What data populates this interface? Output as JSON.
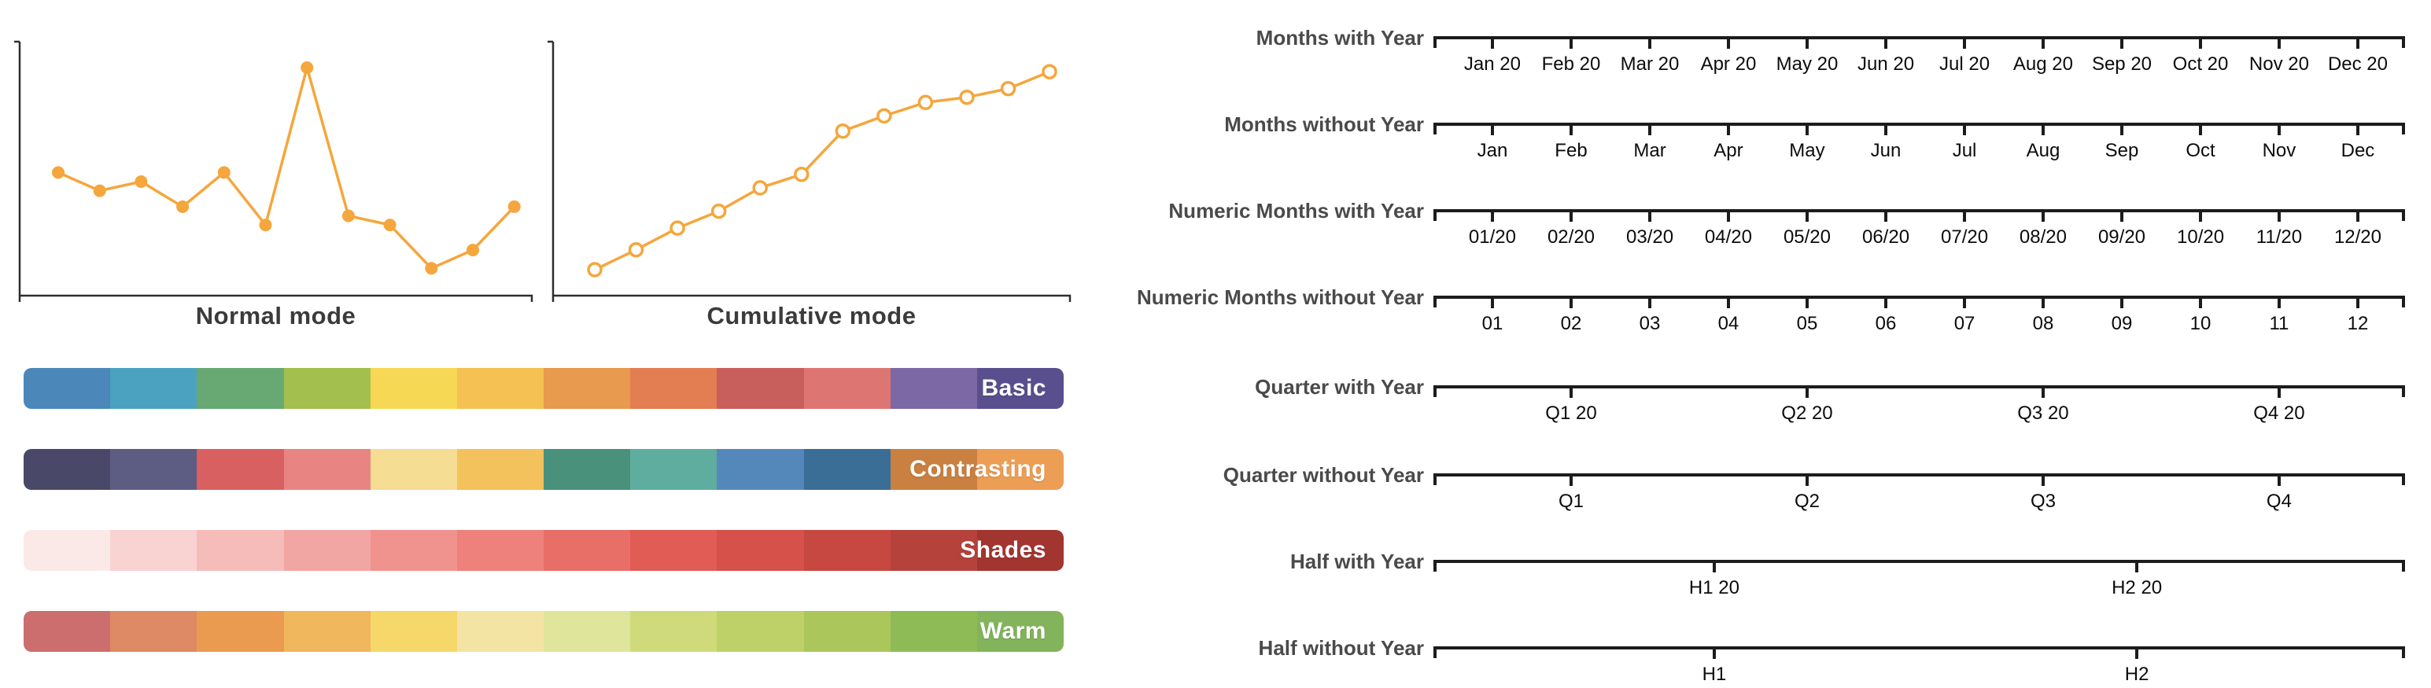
{
  "charts": {
    "normal": {
      "title": "Normal mode"
    },
    "cumulative": {
      "title": "Cumulative mode"
    }
  },
  "chart_data": [
    {
      "type": "line",
      "title": "Normal mode",
      "x": [
        1,
        2,
        3,
        4,
        5,
        6,
        7,
        8,
        9,
        10,
        11,
        12
      ],
      "values": [
        54,
        46,
        50,
        39,
        54,
        31,
        100,
        35,
        31,
        12,
        20,
        39
      ],
      "point_style": "filled",
      "line_color": "#F5A63C",
      "xlabel": "",
      "ylabel": "",
      "axis_ticks": "none",
      "legend": "none"
    },
    {
      "type": "line",
      "title": "Cumulative mode",
      "x": [
        1,
        2,
        3,
        4,
        5,
        6,
        7,
        8,
        9,
        10,
        11,
        12
      ],
      "values": [
        54,
        100,
        150,
        189,
        243,
        274,
        374,
        409,
        440,
        452,
        472,
        511
      ],
      "point_style": "open",
      "line_color": "#F5A63C",
      "xlabel": "",
      "ylabel": "",
      "axis_ticks": "none",
      "legend": "none"
    }
  ],
  "palettes": [
    {
      "label": "Basic",
      "colors": [
        "#4C87B9",
        "#4AA2C0",
        "#67A873",
        "#A3BF4E",
        "#F6D855",
        "#F4C152",
        "#E89A4F",
        "#E37D52",
        "#C95F5C",
        "#DD7672",
        "#7B68A5",
        "#5A4F8E"
      ]
    },
    {
      "label": "Contrasting",
      "colors": [
        "#4A4868",
        "#5D5C83",
        "#D96060",
        "#E88583",
        "#F6DD94",
        "#F3C25C",
        "#4A917B",
        "#5FAD9E",
        "#5588BA",
        "#3A6E96",
        "#C98040",
        "#ED9E55"
      ]
    },
    {
      "label": "Shades",
      "colors": [
        "#FBE9E7",
        "#F8D3D1",
        "#F5BCBA",
        "#F2A6A3",
        "#F0938F",
        "#EE817C",
        "#E86F68",
        "#E05C55",
        "#D5514A",
        "#C64841",
        "#B5423B",
        "#A23530"
      ]
    },
    {
      "label": "Warm",
      "colors": [
        "#CB6E6D",
        "#DE8A64",
        "#EA9B50",
        "#F1B75D",
        "#F6D76A",
        "#F4E4A4",
        "#DFE59A",
        "#CFDA7B",
        "#BED168",
        "#ABC65A",
        "#8FBB57",
        "#83B45C"
      ]
    }
  ],
  "time_axes": {
    "rows": [
      {
        "label": "Months with Year",
        "ticks": [
          "Jan 20",
          "Feb 20",
          "Mar 20",
          "Apr 20",
          "May 20",
          "Jun 20",
          "Jul 20",
          "Aug 20",
          "Sep 20",
          "Oct 20",
          "Nov 20",
          "Dec 20"
        ],
        "positions": [
          6.07,
          14.17,
          22.27,
          30.36,
          38.46,
          46.56,
          54.66,
          62.75,
          70.85,
          78.95,
          87.04,
          95.14
        ]
      },
      {
        "label": "Months without Year",
        "ticks": [
          "Jan",
          "Feb",
          "Mar",
          "Apr",
          "May",
          "Jun",
          "Jul",
          "Aug",
          "Sep",
          "Oct",
          "Nov",
          "Dec"
        ],
        "positions": [
          6.07,
          14.17,
          22.27,
          30.36,
          38.46,
          46.56,
          54.66,
          62.75,
          70.85,
          78.95,
          87.04,
          95.14
        ]
      },
      {
        "label": "Numeric Months with Year",
        "ticks": [
          "01/20",
          "02/20",
          "03/20",
          "04/20",
          "05/20",
          "06/20",
          "07/20",
          "08/20",
          "09/20",
          "10/20",
          "11/20",
          "12/20"
        ],
        "positions": [
          6.07,
          14.17,
          22.27,
          30.36,
          38.46,
          46.56,
          54.66,
          62.75,
          70.85,
          78.95,
          87.04,
          95.14
        ]
      },
      {
        "label": "Numeric Months without Year",
        "ticks": [
          "01",
          "02",
          "03",
          "04",
          "05",
          "06",
          "07",
          "08",
          "09",
          "10",
          "11",
          "12"
        ],
        "positions": [
          6.07,
          14.17,
          22.27,
          30.36,
          38.46,
          46.56,
          54.66,
          62.75,
          70.85,
          78.95,
          87.04,
          95.14
        ]
      },
      {
        "label": "Quarter with Year",
        "ticks": [
          "Q1 20",
          "Q2 20",
          "Q3 20",
          "Q4 20"
        ],
        "positions": [
          14.17,
          38.46,
          62.75,
          87.04
        ]
      },
      {
        "label": "Quarter without Year",
        "ticks": [
          "Q1",
          "Q2",
          "Q3",
          "Q4"
        ],
        "positions": [
          14.17,
          38.46,
          62.75,
          87.04
        ]
      },
      {
        "label": "Half with Year",
        "ticks": [
          "H1 20",
          "H2 20"
        ],
        "positions": [
          28.9,
          72.4
        ]
      },
      {
        "label": "Half without Year",
        "ticks": [
          "H1",
          "H2"
        ],
        "positions": [
          28.9,
          72.4
        ]
      }
    ]
  },
  "colors": {
    "line_orange": "#F5A63C",
    "chart_axis": "#2e2e2e",
    "timeline_axis": "#1c1c1c",
    "row_label_gray": "#4a4a4a",
    "title_gray": "#3b3b3b"
  }
}
